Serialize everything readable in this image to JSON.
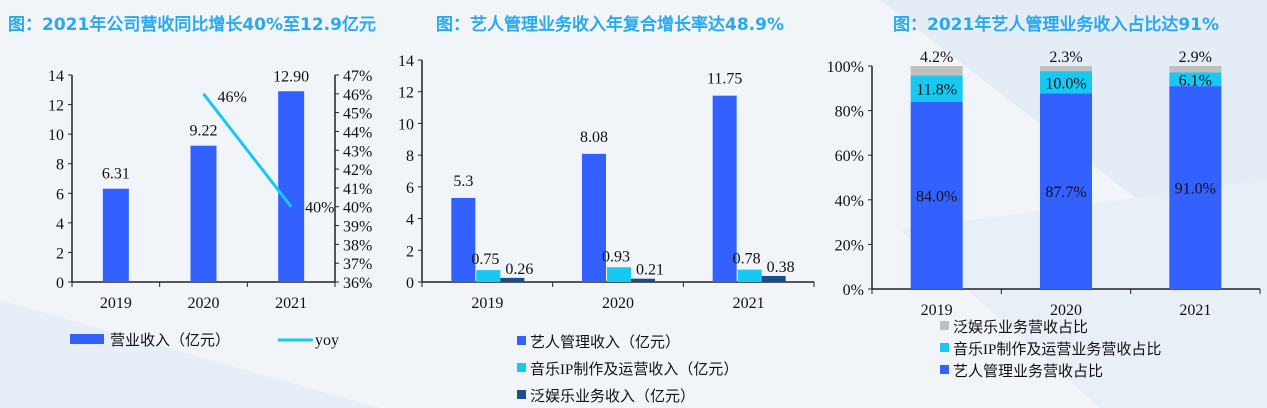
{
  "chart_data": [
    {
      "type": "bar",
      "title": "图：2021年公司营收同比增长40%至12.9亿元",
      "categories": [
        "2019",
        "2020",
        "2021"
      ],
      "series": [
        {
          "name": "营业收入（亿元）",
          "type": "bar",
          "axis": "left",
          "values": [
            6.31,
            9.22,
            12.9
          ],
          "labels": [
            "6.31",
            "9.22",
            "12.90"
          ],
          "color": "#3361ff"
        },
        {
          "name": "yoy",
          "type": "line",
          "axis": "right",
          "values": [
            null,
            46,
            40
          ],
          "labels": [
            "",
            "46%",
            "40%"
          ],
          "color": "#16c8f2"
        }
      ],
      "ylim": [
        0,
        14
      ],
      "yticks": [
        "0",
        "2",
        "4",
        "6",
        "8",
        "10",
        "12",
        "14"
      ],
      "y2lim": [
        36,
        47
      ],
      "y2ticks": [
        "36%",
        "37%",
        "38%",
        "39%",
        "40%",
        "41%",
        "42%",
        "43%",
        "44%",
        "45%",
        "46%",
        "47%"
      ],
      "grid": false,
      "legend": "bottom"
    },
    {
      "type": "bar",
      "title": "图：艺人管理业务收入年复合增长率达48.9%",
      "categories": [
        "2019",
        "2020",
        "2021"
      ],
      "series": [
        {
          "name": "艺人管理收入（亿元）",
          "values": [
            5.3,
            8.08,
            11.75
          ],
          "labels": [
            "5.3",
            "8.08",
            "11.75"
          ],
          "color": "#3361ff"
        },
        {
          "name": "音乐IP制作及运营收入（亿元）",
          "values": [
            0.75,
            0.93,
            0.78
          ],
          "labels": [
            "0.75",
            "0.93",
            "0.78"
          ],
          "color": "#16c8f2"
        },
        {
          "name": "泛娱乐业务收入（亿元）",
          "values": [
            0.26,
            0.21,
            0.38
          ],
          "labels": [
            "0.26",
            "0.21",
            "0.38"
          ],
          "color": "#1a4f8f"
        }
      ],
      "ylim": [
        0,
        14
      ],
      "yticks": [
        "0",
        "2",
        "4",
        "6",
        "8",
        "10",
        "12",
        "14"
      ],
      "grid": false,
      "legend": "bottom"
    },
    {
      "type": "bar",
      "stacked": true,
      "title": "图：2021年艺人管理业务收入占比达91%",
      "categories": [
        "2019",
        "2020",
        "2021"
      ],
      "series": [
        {
          "name": "艺人管理业务营收占比",
          "values": [
            84.0,
            87.7,
            91.0
          ],
          "labels": [
            "84.0%",
            "87.7%",
            "91.0%"
          ],
          "color": "#3361ff"
        },
        {
          "name": "音乐IP制作及运营业务营收占比",
          "values": [
            11.8,
            10.0,
            6.1
          ],
          "labels": [
            "11.8%",
            "10.0%",
            "6.1%"
          ],
          "color": "#16c8f2"
        },
        {
          "name": "泛娱乐业务营收占比",
          "values": [
            4.2,
            2.3,
            2.9
          ],
          "labels": [
            "4.2%",
            "2.3%",
            "2.9%"
          ],
          "color": "#bfbfbf"
        }
      ],
      "ylim": [
        0,
        100
      ],
      "yticks": [
        "0%",
        "20%",
        "40%",
        "60%",
        "80%",
        "100%"
      ],
      "grid": false,
      "legend": "bottom"
    }
  ]
}
